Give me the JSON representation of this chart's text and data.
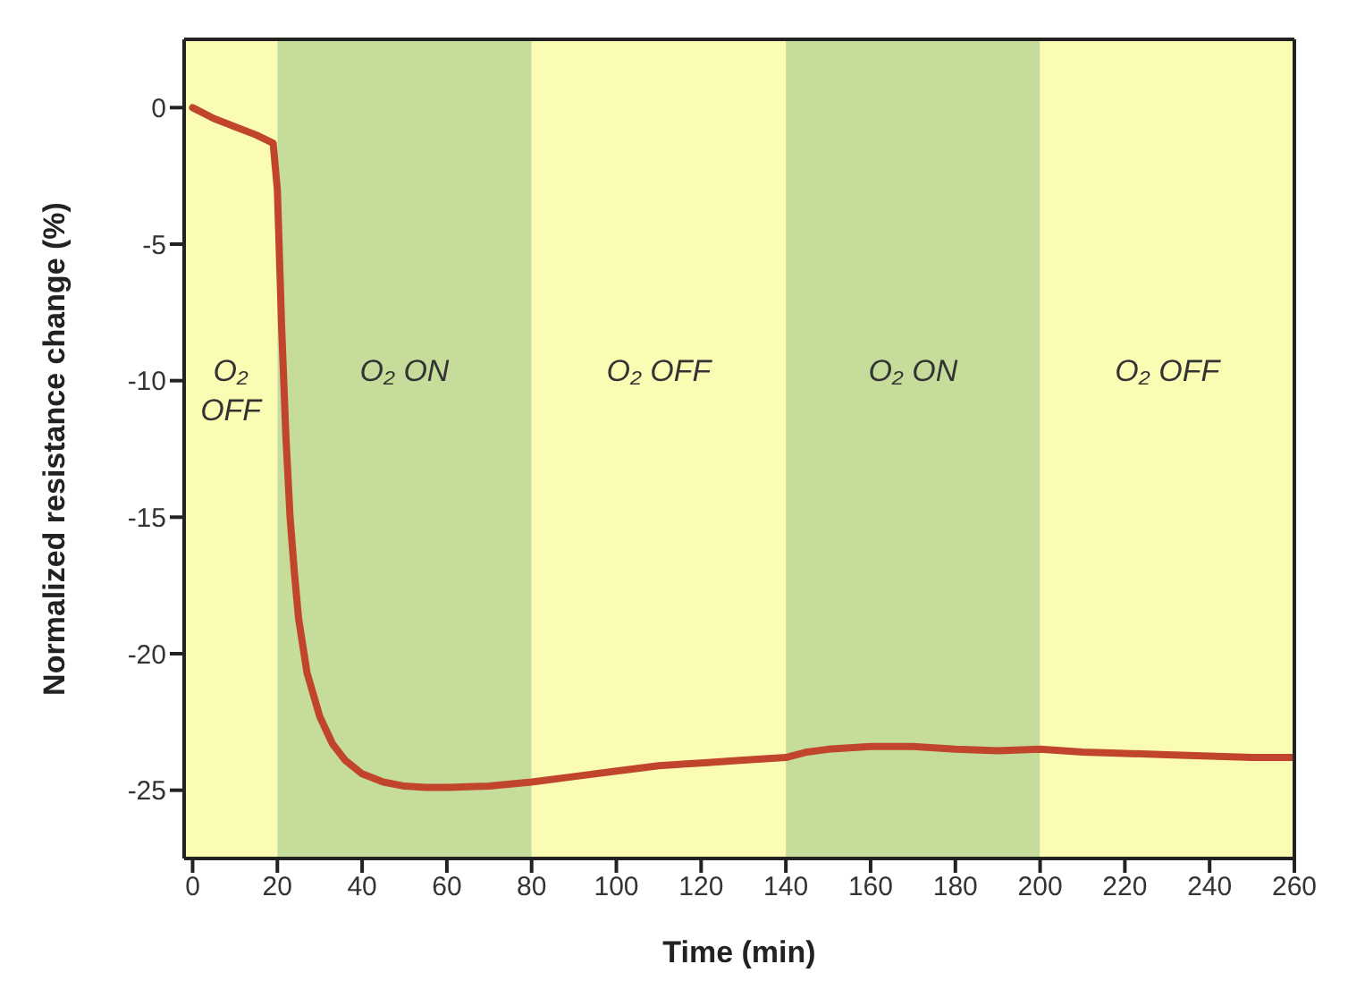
{
  "chart_data": {
    "type": "line",
    "xlabel": "Time (min)",
    "ylabel": "Normalized resistance change (%)",
    "xlim": [
      -2,
      260
    ],
    "xticks": [
      0,
      20,
      40,
      60,
      80,
      100,
      120,
      140,
      160,
      180,
      200,
      220,
      240,
      260
    ],
    "ylim": [
      -27.5,
      2.5
    ],
    "yticks": [
      0,
      -5,
      -10,
      -15,
      -20,
      -25
    ],
    "marker": "none",
    "line_style": "solid",
    "series": [
      {
        "color": "#c0452c",
        "x": [
          0,
          5,
          10,
          15,
          19,
          20,
          21,
          22,
          23,
          24,
          25,
          27,
          30,
          33,
          36,
          40,
          45,
          50,
          55,
          60,
          70,
          80,
          90,
          100,
          110,
          120,
          130,
          140,
          145,
          150,
          160,
          170,
          180,
          190,
          200,
          210,
          220,
          230,
          240,
          250,
          260
        ],
        "values": [
          0,
          -0.4,
          -0.7,
          -1.0,
          -1.3,
          -3,
          -8,
          -12,
          -15,
          -17,
          -18.7,
          -20.7,
          -22.3,
          -23.3,
          -23.9,
          -24.4,
          -24.7,
          -24.85,
          -24.9,
          -24.9,
          -24.85,
          -24.7,
          -24.5,
          -24.3,
          -24.1,
          -24.0,
          -23.9,
          -23.8,
          -23.6,
          -23.5,
          -23.4,
          -23.4,
          -23.5,
          -23.55,
          -23.5,
          -23.6,
          -23.65,
          -23.7,
          -23.75,
          -23.8,
          -23.8
        ]
      }
    ],
    "bands": [
      {
        "axis": "x",
        "from": -2,
        "to": 20,
        "label": "O₂ OFF",
        "color": "#fbfcb4"
      },
      {
        "axis": "x",
        "from": 20,
        "to": 80,
        "label": "O₂ ON",
        "color": "#c5dc9a"
      },
      {
        "axis": "x",
        "from": 80,
        "to": 140,
        "label": "O₂ OFF",
        "color": "#fbfcb4"
      },
      {
        "axis": "x",
        "from": 140,
        "to": 200,
        "label": "O₂ ON",
        "color": "#c5dc9a"
      },
      {
        "axis": "x",
        "from": 200,
        "to": 260,
        "label": "O₂ OFF",
        "color": "#fbfcb4"
      }
    ]
  }
}
